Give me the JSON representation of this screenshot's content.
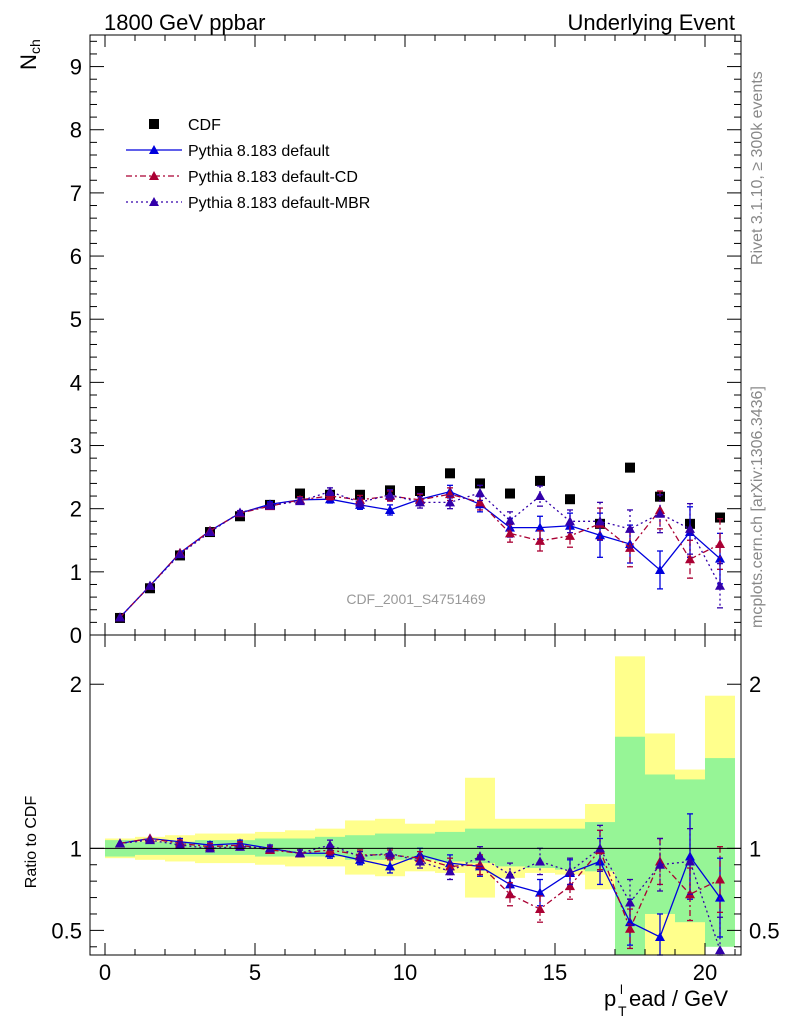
{
  "header": {
    "left": "1800 GeV ppbar",
    "right": "Underlying Event",
    "watermark": "CDF_2001_S4751469",
    "side_rivet": "Rivet 3.1.10, ≥ 300k events",
    "side_mcplots": "mcplots.cern.ch [arXiv:1306.3436]"
  },
  "chart_data": {
    "type": "scatter",
    "x": [
      0.5,
      1.5,
      2.5,
      3.5,
      4.5,
      5.5,
      6.5,
      7.5,
      8.5,
      9.5,
      10.5,
      11.5,
      12.5,
      13.5,
      14.5,
      15.5,
      16.5,
      17.5,
      18.5,
      19.5,
      20.5
    ],
    "top": {
      "ylabel": "N",
      "ylabel_sub": "ch",
      "ylim": [
        0,
        9.5
      ],
      "yticks": [
        0,
        1,
        2,
        3,
        4,
        5,
        6,
        7,
        8,
        9
      ],
      "yticklabels": [
        "0",
        "1",
        "2",
        "3",
        "4",
        "5",
        "6",
        "7",
        "8",
        "9"
      ]
    },
    "ratio": {
      "ylabel": "Ratio to CDF",
      "ylim": [
        0.35,
        2.3
      ],
      "yticks": [
        0.5,
        1,
        2
      ],
      "yticklabels": [
        "0.5",
        "1",
        "2"
      ]
    },
    "xlim": [
      -0.5,
      21.2
    ],
    "xticks": [
      0,
      5,
      10,
      15,
      20
    ],
    "xticklabels": [
      "0",
      "5",
      "10",
      "15",
      "20"
    ],
    "xlabel": {
      "p": "p",
      "T": "T",
      "l": "l",
      "rest": "ead / GeV"
    },
    "data_band_inner": [
      [
        0.95,
        1.05
      ],
      [
        0.96,
        1.04
      ],
      [
        0.96,
        1.04
      ],
      [
        0.96,
        1.05
      ],
      [
        0.96,
        1.05
      ],
      [
        0.95,
        1.06
      ],
      [
        0.95,
        1.06
      ],
      [
        0.95,
        1.07
      ],
      [
        0.93,
        1.08
      ],
      [
        0.93,
        1.09
      ],
      [
        0.93,
        1.09
      ],
      [
        0.92,
        1.1
      ],
      [
        0.91,
        1.12
      ],
      [
        0.89,
        1.12
      ],
      [
        0.88,
        1.12
      ],
      [
        0.87,
        1.12
      ],
      [
        0.86,
        1.16
      ],
      [
        0.35,
        1.68
      ],
      [
        0.6,
        1.45
      ],
      [
        0.55,
        1.42
      ],
      [
        0.4,
        1.55
      ]
    ],
    "data_band_outer": [
      [
        0.94,
        1.06
      ],
      [
        0.93,
        1.07
      ],
      [
        0.92,
        1.08
      ],
      [
        0.91,
        1.09
      ],
      [
        0.91,
        1.09
      ],
      [
        0.9,
        1.1
      ],
      [
        0.89,
        1.11
      ],
      [
        0.89,
        1.12
      ],
      [
        0.84,
        1.17
      ],
      [
        0.83,
        1.18
      ],
      [
        0.86,
        1.15
      ],
      [
        0.85,
        1.17
      ],
      [
        0.7,
        1.43
      ],
      [
        0.82,
        1.18
      ],
      [
        0.85,
        1.18
      ],
      [
        0.84,
        1.18
      ],
      [
        0.75,
        1.27
      ],
      [
        0.35,
        2.17
      ],
      [
        0.35,
        1.7
      ],
      [
        0.35,
        1.48
      ],
      [
        0.57,
        1.93
      ]
    ],
    "series": [
      {
        "name": "CDF",
        "marker": "square",
        "color": "#000000",
        "values": [
          0.27,
          0.74,
          1.26,
          1.63,
          1.88,
          2.06,
          2.24,
          2.22,
          2.22,
          2.29,
          2.28,
          2.56,
          2.4,
          2.24,
          2.44,
          2.15,
          1.76,
          2.65,
          2.19,
          1.76,
          1.86
        ]
      },
      {
        "name": "Pythia 8.183 default",
        "marker": "triangle",
        "color": "#0000dd",
        "dash": "",
        "values": [
          0.28,
          0.78,
          1.3,
          1.65,
          1.93,
          2.07,
          2.14,
          2.15,
          2.06,
          1.98,
          2.15,
          2.27,
          2.07,
          1.7,
          1.7,
          1.73,
          1.58,
          1.44,
          1.03,
          1.63,
          1.21
        ],
        "errors": [
          0.01,
          0.01,
          0.02,
          0.02,
          0.03,
          0.04,
          0.05,
          0.06,
          0.07,
          0.08,
          0.09,
          0.1,
          0.12,
          0.15,
          0.18,
          0.2,
          0.35,
          0.3,
          0.3,
          0.4,
          0.4
        ],
        "ratio": [
          1.03,
          1.06,
          1.04,
          1.02,
          1.03,
          1.0,
          0.97,
          0.97,
          0.93,
          0.89,
          0.96,
          0.91,
          0.89,
          0.78,
          0.73,
          0.85,
          0.92,
          0.55,
          0.46,
          0.95,
          0.7
        ],
        "ratio_errors": [
          0.01,
          0.01,
          0.02,
          0.02,
          0.02,
          0.02,
          0.02,
          0.03,
          0.03,
          0.04,
          0.04,
          0.05,
          0.06,
          0.06,
          0.08,
          0.08,
          0.14,
          0.14,
          0.14,
          0.26,
          0.24
        ]
      },
      {
        "name": "Pythia 8.183 default-CD",
        "marker": "triangle",
        "color": "#aa0033",
        "dash": "6,3,2,3",
        "values": [
          0.28,
          0.78,
          1.3,
          1.65,
          1.93,
          2.04,
          2.14,
          2.2,
          2.14,
          2.2,
          2.14,
          2.23,
          2.1,
          1.61,
          1.49,
          1.57,
          1.76,
          1.38,
          1.98,
          1.2,
          1.44
        ],
        "errors": [
          0.01,
          0.01,
          0.02,
          0.02,
          0.03,
          0.04,
          0.05,
          0.06,
          0.07,
          0.08,
          0.09,
          0.1,
          0.12,
          0.14,
          0.16,
          0.18,
          0.25,
          0.3,
          0.3,
          0.3,
          0.4
        ],
        "ratio": [
          1.03,
          1.06,
          1.03,
          1.01,
          1.02,
          0.99,
          0.97,
          0.99,
          0.96,
          0.96,
          0.94,
          0.89,
          0.9,
          0.72,
          0.63,
          0.77,
          0.99,
          0.51,
          0.92,
          0.72,
          0.81
        ],
        "ratio_errors": [
          0.01,
          0.01,
          0.02,
          0.02,
          0.02,
          0.02,
          0.02,
          0.03,
          0.03,
          0.03,
          0.04,
          0.05,
          0.06,
          0.07,
          0.08,
          0.08,
          0.12,
          0.12,
          0.14,
          0.16,
          0.2
        ]
      },
      {
        "name": "Pythia 8.183 default-MBR",
        "marker": "triangle",
        "color": "#3300aa",
        "dash": "2,3",
        "values": [
          0.28,
          0.78,
          1.28,
          1.63,
          1.94,
          2.05,
          2.12,
          2.27,
          2.1,
          2.22,
          2.1,
          2.1,
          2.25,
          1.81,
          2.2,
          1.8,
          1.8,
          1.68,
          1.92,
          1.68,
          0.78
        ],
        "errors": [
          0.01,
          0.01,
          0.02,
          0.02,
          0.03,
          0.04,
          0.05,
          0.06,
          0.07,
          0.08,
          0.09,
          0.1,
          0.12,
          0.14,
          0.16,
          0.18,
          0.3,
          0.3,
          0.3,
          0.4,
          0.35
        ],
        "ratio": [
          1.03,
          1.05,
          1.02,
          1.0,
          1.01,
          1.0,
          0.97,
          1.02,
          0.95,
          0.97,
          0.92,
          0.86,
          0.95,
          0.84,
          0.92,
          0.86,
          1.0,
          0.67,
          0.9,
          0.92,
          0.38
        ],
        "ratio_errors": [
          0.01,
          0.01,
          0.02,
          0.02,
          0.02,
          0.02,
          0.02,
          0.03,
          0.03,
          0.03,
          0.04,
          0.05,
          0.06,
          0.07,
          0.08,
          0.08,
          0.14,
          0.14,
          0.16,
          0.2,
          0.2
        ]
      }
    ],
    "legend": [
      "CDF",
      "Pythia 8.183 default",
      "Pythia 8.183 default-CD",
      "Pythia 8.183 default-MBR"
    ],
    "legend_position": "top-left"
  }
}
